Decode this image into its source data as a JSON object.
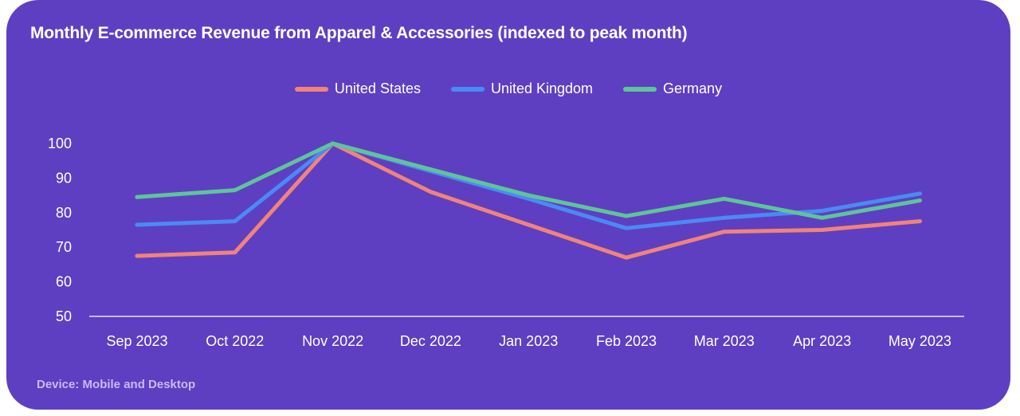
{
  "card": {
    "title": "Monthly E-commerce Revenue from Apparel & Accessories (indexed to peak month)",
    "footer": "Device: Mobile and Desktop",
    "background_color": "#5e3fc2"
  },
  "chart_data": {
    "type": "line",
    "title": "Monthly E-commerce Revenue from Apparel & Accessories (indexed to peak month)",
    "xlabel": "",
    "ylabel": "",
    "categories": [
      "Sep 2023",
      "Oct 2022",
      "Nov 2022",
      "Dec 2022",
      "Jan 2023",
      "Feb 2023",
      "Mar 2023",
      "Apr 2023",
      "May 2023"
    ],
    "ylim": [
      50,
      100
    ],
    "yticks": [
      50,
      60,
      70,
      80,
      90,
      100
    ],
    "grid": false,
    "legend_position": "top-center",
    "series": [
      {
        "name": "United States",
        "color": "#f0837a",
        "values": [
          67.5,
          68.5,
          100,
          86,
          76.5,
          67,
          74.5,
          75,
          77.5
        ]
      },
      {
        "name": "United Kingdom",
        "color": "#4a8af4",
        "values": [
          76.5,
          77.5,
          100,
          92,
          84,
          75.5,
          78.5,
          80.5,
          85.5
        ]
      },
      {
        "name": "Germany",
        "color": "#5ec49a",
        "values": [
          84.5,
          86.5,
          100,
          92.5,
          85,
          79,
          84,
          78.5,
          83.5
        ]
      }
    ],
    "annotations": [
      "Device: Mobile and Desktop"
    ]
  }
}
